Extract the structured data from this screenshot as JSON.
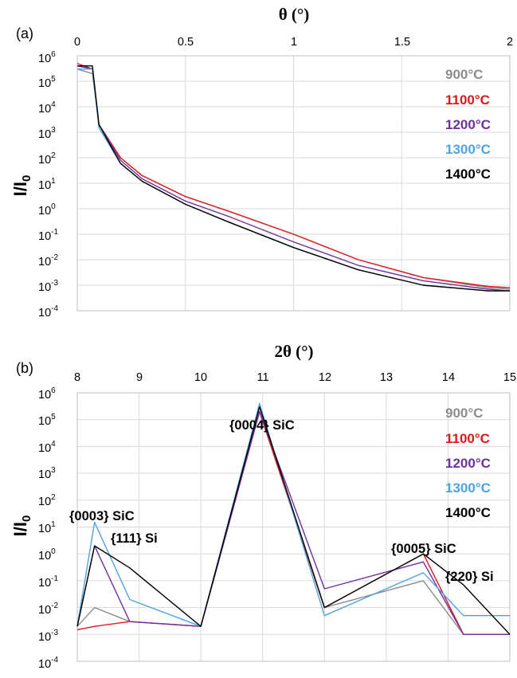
{
  "figure": {
    "panels": [
      {
        "id": "a",
        "label": "(a)",
        "x_title": "θ (°)",
        "y_title_main": "I/I",
        "y_title_sub": "0",
        "x_ticks": [
          "0",
          "0.5",
          "1",
          "1.5",
          "2"
        ],
        "y_exponents": [
          "6",
          "5",
          "4",
          "3",
          "2",
          "1",
          "0",
          "-1",
          "-2",
          "-3",
          "-4"
        ],
        "y_base": "10"
      },
      {
        "id": "b",
        "label": "(b)",
        "x_title": "2θ (°)",
        "y_title_main": "I/I",
        "y_title_sub": "0",
        "x_ticks": [
          "8",
          "9",
          "10",
          "11",
          "12",
          "13",
          "14",
          "15"
        ],
        "y_exponents": [
          "6",
          "5",
          "4",
          "3",
          "2",
          "1",
          "0",
          "-1",
          "-2",
          "-3",
          "-4"
        ],
        "y_base": "10",
        "annotations": [
          "{0004} SiC",
          "{0003} SiC",
          "{111} Si",
          "{0005} SiC",
          "{220} Si"
        ]
      }
    ],
    "legend": [
      {
        "label": "900°C",
        "color": "#8c8c8c"
      },
      {
        "label": "1100°C",
        "color": "#e0181b"
      },
      {
        "label": "1200°C",
        "color": "#7030a0"
      },
      {
        "label": "1300°C",
        "color": "#4fa3e0"
      },
      {
        "label": "1400°C",
        "color": "#000000"
      }
    ]
  },
  "chart_data": [
    {
      "type": "line",
      "panel": "a",
      "x_label": "θ (°)",
      "y_label": "I/I0",
      "xlim": [
        0,
        2
      ],
      "ylim": [
        0.0001,
        1000000
      ],
      "y_scale": "log",
      "grid": true,
      "legend_position": "top-right",
      "series": [
        {
          "name": "900°C",
          "color": "#8c8c8c",
          "x": [
            0,
            0.07,
            0.1,
            0.2,
            0.3,
            0.5,
            0.7,
            1.0,
            1.3,
            1.6,
            1.9,
            2.0
          ],
          "y": [
            300000,
            200000,
            2000,
            100,
            20,
            3,
            0.8,
            0.1,
            0.01,
            0.002,
            0.0008,
            0.0007
          ]
        },
        {
          "name": "1100°C",
          "color": "#e0181b",
          "x": [
            0,
            0.07,
            0.1,
            0.2,
            0.3,
            0.5,
            0.7,
            1.0,
            1.3,
            1.6,
            1.9,
            2.0
          ],
          "y": [
            500000,
            300000,
            2000,
            100,
            20,
            3,
            0.8,
            0.1,
            0.01,
            0.002,
            0.0009,
            0.0008
          ]
        },
        {
          "name": "1200°C",
          "color": "#7030a0",
          "x": [
            0,
            0.07,
            0.1,
            0.2,
            0.3,
            0.5,
            0.7,
            1.0,
            1.3,
            1.6,
            1.9,
            2.0
          ],
          "y": [
            400000,
            300000,
            2000,
            80,
            15,
            2,
            0.5,
            0.05,
            0.006,
            0.0015,
            0.0007,
            0.0006
          ]
        },
        {
          "name": "1300°C",
          "color": "#4fa3e0",
          "x": [
            0,
            0.07,
            0.1,
            0.2,
            0.3,
            0.5,
            0.7,
            1.0,
            1.3,
            1.6,
            1.9,
            2.0
          ],
          "y": [
            300000,
            300000,
            1500,
            60,
            12,
            1.5,
            0.3,
            0.03,
            0.004,
            0.001,
            0.0006,
            0.0006
          ]
        },
        {
          "name": "1400°C",
          "color": "#000000",
          "x": [
            0,
            0.07,
            0.1,
            0.2,
            0.3,
            0.5,
            0.7,
            1.0,
            1.3,
            1.6,
            1.9,
            2.0
          ],
          "y": [
            400000,
            400000,
            2000,
            60,
            12,
            1.5,
            0.3,
            0.03,
            0.004,
            0.001,
            0.0006,
            0.0006
          ]
        }
      ]
    },
    {
      "type": "line",
      "panel": "b",
      "x_label": "2θ (°)",
      "y_label": "I/I0",
      "xlim": [
        8,
        15
      ],
      "ylim": [
        0.0001,
        1000000
      ],
      "y_scale": "log",
      "grid": true,
      "legend_position": "top-right",
      "peaks": [
        {
          "label": "{0003} SiC",
          "x": 8.28
        },
        {
          "label": "{111} Si",
          "x": 8.85
        },
        {
          "label": "{0004} SiC",
          "x": 10.95
        },
        {
          "label": "{0005} SiC",
          "x": 13.6
        },
        {
          "label": "{220} Si",
          "x": 14.25
        }
      ],
      "series": [
        {
          "name": "900°C",
          "color": "#8c8c8c",
          "x": [
            8.0,
            8.28,
            8.85,
            10.0,
            10.95,
            12.0,
            13.6,
            14.25,
            15.0
          ],
          "y": [
            0.002,
            0.01,
            0.003,
            0.002,
            200000,
            0.01,
            0.1,
            0.001,
            0.001
          ]
        },
        {
          "name": "1100°C",
          "color": "#e0181b",
          "x": [
            8.0,
            8.28,
            8.85,
            10.0,
            10.95,
            12.0,
            13.6,
            14.25,
            15.0
          ],
          "y": [
            0.0015,
            0.002,
            0.003,
            0.002,
            200000,
            0.01,
            1.0,
            0.001,
            0.001
          ]
        },
        {
          "name": "1200°C",
          "color": "#7030a0",
          "x": [
            8.0,
            8.28,
            8.85,
            10.0,
            10.95,
            12.0,
            13.6,
            14.25,
            15.0
          ],
          "y": [
            0.002,
            2,
            0.003,
            0.002,
            200000,
            0.05,
            0.5,
            0.001,
            0.001
          ]
        },
        {
          "name": "1300°C",
          "color": "#4fa3e0",
          "x": [
            8.0,
            8.28,
            8.85,
            10.0,
            10.95,
            12.0,
            13.6,
            14.25,
            15.0
          ],
          "y": [
            0.002,
            15,
            0.02,
            0.002,
            400000,
            0.005,
            0.2,
            0.005,
            0.005
          ]
        },
        {
          "name": "1400°C",
          "color": "#000000",
          "x": [
            8.0,
            8.28,
            8.85,
            10.0,
            10.95,
            12.0,
            13.6,
            14.25,
            15.0
          ],
          "y": [
            0.002,
            2,
            0.3,
            0.002,
            300000,
            0.01,
            1.0,
            0.07,
            0.001
          ]
        }
      ]
    }
  ]
}
